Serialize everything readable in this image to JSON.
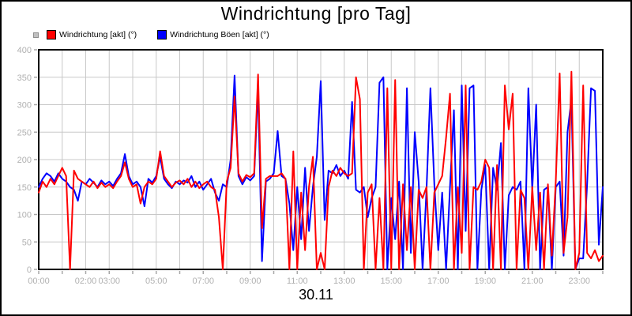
{
  "title": "Windrichtung [pro Tag]",
  "date_label": "30.11",
  "legend": {
    "items": [
      {
        "label": "Windrichtung [akt] (°)",
        "color": "#ff0000"
      },
      {
        "label": "Windrichtung Böen [akt] (°)",
        "color": "#0000ff"
      }
    ]
  },
  "chart_data": {
    "type": "line",
    "title": "Windrichtung [pro Tag]",
    "date_label": "30.11",
    "ylim": [
      0,
      400
    ],
    "y_ticks": [
      0,
      50,
      100,
      150,
      200,
      250,
      300,
      350,
      400
    ],
    "y_tick_labels": [
      "0",
      "50",
      "100",
      "150",
      "200",
      "250",
      "300",
      "350",
      "400"
    ],
    "x_hours_range": [
      0,
      24
    ],
    "x_tick_every_hours": 1,
    "x_tick_labels": [
      {
        "hour": 0,
        "label": "00:00"
      },
      {
        "hour": 2,
        "label": "02:00"
      },
      {
        "hour": 3,
        "label": "03:00"
      },
      {
        "hour": 5,
        "label": "05:00"
      },
      {
        "hour": 7,
        "label": "07:00"
      },
      {
        "hour": 9,
        "label": "09:00"
      },
      {
        "hour": 11,
        "label": "11:00"
      },
      {
        "hour": 13,
        "label": "13:00"
      },
      {
        "hour": 15,
        "label": "15:00"
      },
      {
        "hour": 17,
        "label": "17:00"
      },
      {
        "hour": 19,
        "label": "19:00"
      },
      {
        "hour": 21,
        "label": "21:00"
      },
      {
        "hour": 23,
        "label": "23:00"
      }
    ],
    "grid": {
      "vertical_every_hours": 1,
      "horizontal_every_units": 50,
      "color": "#c8c8c8"
    },
    "axis_label_color": "#b0b0b0",
    "tick_color": "#a8a8a8",
    "border_color": "#000000",
    "line_width": 2,
    "sample_interval_minutes": 10,
    "legend_position": "top-left",
    "series": [
      {
        "name": "Windrichtung [akt] (°)",
        "color": "#ff0000",
        "values": [
          140,
          160,
          150,
          165,
          155,
          170,
          185,
          170,
          0,
          180,
          165,
          160,
          155,
          150,
          160,
          148,
          158,
          150,
          155,
          148,
          160,
          170,
          195,
          165,
          150,
          155,
          120,
          150,
          160,
          155,
          165,
          215,
          170,
          160,
          150,
          158,
          162,
          155,
          165,
          150,
          160,
          148,
          155,
          160,
          150,
          145,
          95,
          0,
          160,
          185,
          315,
          175,
          160,
          172,
          168,
          175,
          355,
          75,
          165,
          170,
          170,
          170,
          175,
          165,
          0,
          215,
          0,
          140,
          35,
          150,
          205,
          0,
          30,
          0,
          150,
          180,
          170,
          185,
          175,
          170,
          175,
          350,
          310,
          0,
          140,
          155,
          0,
          130,
          0,
          330,
          0,
          345,
          0,
          155,
          35,
          150,
          0,
          145,
          130,
          150,
          0,
          140,
          155,
          170,
          240,
          320,
          0,
          150,
          30,
          335,
          0,
          150,
          145,
          160,
          200,
          185,
          0,
          190,
          0,
          335,
          255,
          320,
          0,
          145,
          130,
          0,
          150,
          35,
          140,
          0,
          155,
          25,
          160,
          357,
          30,
          95,
          360,
          0,
          30,
          335,
          30,
          20,
          35,
          15,
          25
        ]
      },
      {
        "name": "Windrichtung Böen [akt] (°)",
        "color": "#0000ff",
        "values": [
          150,
          165,
          175,
          170,
          160,
          175,
          165,
          160,
          150,
          145,
          125,
          160,
          155,
          165,
          158,
          150,
          162,
          155,
          160,
          152,
          165,
          175,
          210,
          170,
          155,
          160,
          150,
          115,
          165,
          158,
          170,
          205,
          165,
          155,
          148,
          160,
          155,
          162,
          158,
          170,
          150,
          160,
          145,
          155,
          165,
          140,
          125,
          155,
          150,
          200,
          353,
          170,
          155,
          168,
          162,
          170,
          330,
          15,
          160,
          165,
          175,
          252,
          170,
          165,
          120,
          35,
          150,
          55,
          185,
          70,
          150,
          205,
          343,
          90,
          180,
          175,
          190,
          170,
          180,
          165,
          305,
          145,
          140,
          150,
          95,
          130,
          150,
          340,
          350,
          0,
          130,
          55,
          160,
          0,
          330,
          30,
          250,
          160,
          0,
          145,
          330,
          155,
          35,
          140,
          0,
          150,
          290,
          0,
          335,
          70,
          330,
          335,
          0,
          145,
          190,
          0,
          185,
          145,
          230,
          0,
          135,
          150,
          145,
          160,
          0,
          330,
          145,
          300,
          0,
          145,
          150,
          0,
          150,
          160,
          25,
          250,
          310,
          0,
          20,
          20,
          155,
          330,
          325,
          45,
          150
        ]
      }
    ]
  }
}
